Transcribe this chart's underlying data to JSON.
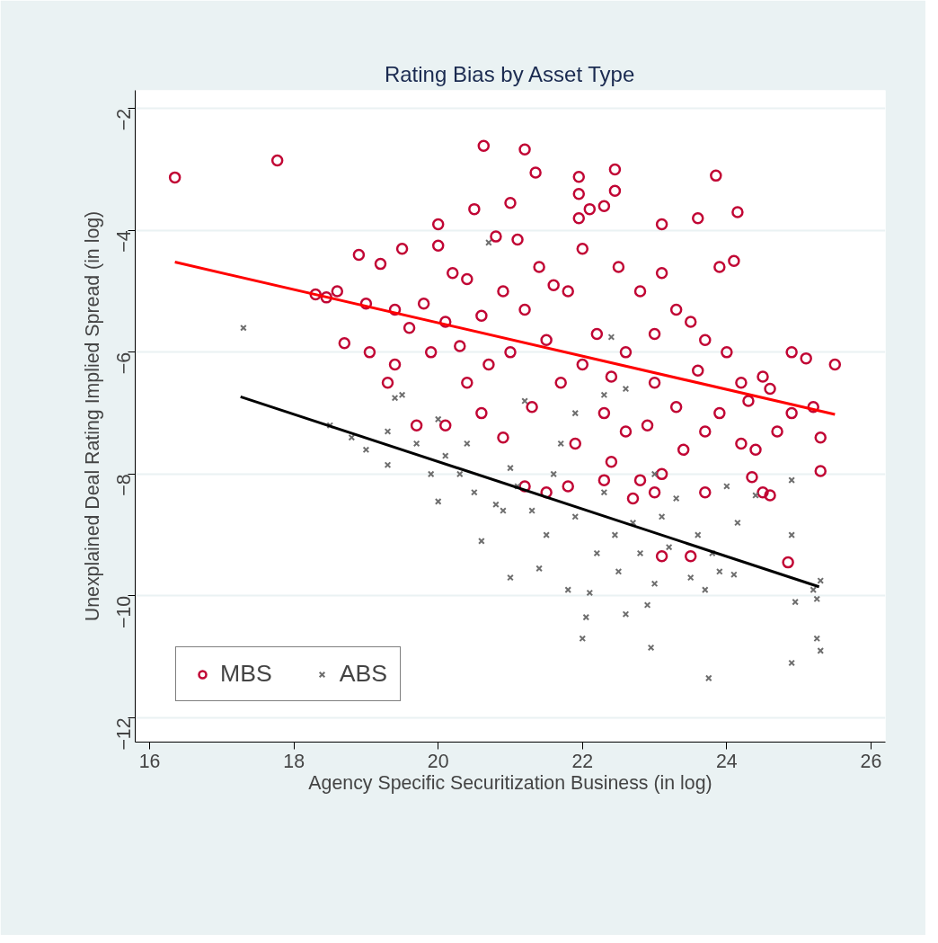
{
  "chart_data": {
    "type": "scatter",
    "title": "Rating Bias by Asset Type",
    "xlabel": "Agency Specific Securitization Business (in log)",
    "ylabel": "Unexplained Deal Rating Implied Spread (in log)",
    "xlim": [
      15.8,
      26.2
    ],
    "ylim": [
      -12.4,
      -1.7
    ],
    "xticks": [
      16,
      18,
      20,
      22,
      24,
      26
    ],
    "yticks": [
      -2,
      -4,
      -6,
      -8,
      -10,
      -12
    ],
    "grid": "y",
    "legend": "bottom left",
    "series": [
      {
        "name": "MBS",
        "color": "#c10534",
        "marker": "circle",
        "x": [
          16.35,
          17.77,
          20.63,
          21.2,
          21.35,
          21.95,
          21.95,
          21.95,
          22.1,
          22.3,
          22.45,
          22.45,
          21.0,
          20.5,
          20.0,
          23.1,
          23.6,
          23.85,
          24.15,
          23.9,
          24.1,
          20.0,
          20.8,
          21.1,
          19.5,
          18.9,
          19.2,
          18.3,
          18.45,
          18.6,
          18.7,
          19.05,
          19.3,
          19.4,
          19.7,
          20.1,
          20.4,
          20.6,
          20.9,
          21.2,
          21.5,
          21.8,
          22.3,
          22.4,
          22.8,
          22.7,
          23.1,
          23.0,
          23.1,
          23.5,
          23.7,
          23.7,
          24.2,
          24.4,
          24.35,
          24.5,
          24.6,
          24.85,
          25.3,
          25.3,
          25.5,
          25.2,
          24.9,
          25.1,
          24.9,
          24.7,
          24.6,
          24.3,
          24.5,
          24.0,
          24.2,
          23.9,
          23.6,
          23.5,
          23.7,
          23.3,
          23.0,
          23.0,
          23.1,
          22.8,
          22.6,
          22.4,
          22.2,
          22.0,
          22.0,
          21.8,
          21.7,
          21.5,
          21.4,
          21.3,
          21.2,
          21.0,
          20.9,
          20.7,
          20.6,
          20.4,
          20.3,
          20.1,
          19.9,
          19.8,
          19.6,
          19.4,
          19.0,
          22.6,
          22.3,
          21.9,
          22.9,
          23.4,
          20.2,
          21.6,
          22.5,
          23.3
        ],
        "values": [
          -3.13,
          -2.85,
          -2.61,
          -2.67,
          -3.05,
          -3.12,
          -3.4,
          -3.8,
          -3.65,
          -3.6,
          -3.0,
          -3.35,
          -3.55,
          -3.65,
          -3.9,
          -3.9,
          -3.8,
          -3.1,
          -3.7,
          -4.6,
          -4.5,
          -4.25,
          -4.1,
          -4.15,
          -4.3,
          -4.4,
          -4.55,
          -5.05,
          -5.1,
          -5.0,
          -5.85,
          -6.0,
          -6.5,
          -6.2,
          -7.2,
          -7.2,
          -6.5,
          -7.0,
          -7.4,
          -8.2,
          -8.3,
          -8.2,
          -8.1,
          -7.8,
          -8.1,
          -8.4,
          -8.0,
          -8.3,
          -9.35,
          -9.35,
          -8.3,
          -7.3,
          -7.5,
          -7.6,
          -8.05,
          -8.3,
          -8.35,
          -9.45,
          -7.95,
          -7.4,
          -6.2,
          -6.9,
          -6.0,
          -6.1,
          -7.0,
          -7.3,
          -6.6,
          -6.8,
          -6.4,
          -6.0,
          -6.5,
          -7.0,
          -6.3,
          -5.5,
          -5.8,
          -6.9,
          -6.5,
          -5.7,
          -4.7,
          -5.0,
          -6.0,
          -6.4,
          -5.7,
          -6.2,
          -4.3,
          -5.0,
          -6.5,
          -5.8,
          -4.6,
          -6.9,
          -5.3,
          -6.0,
          -5.0,
          -6.2,
          -5.4,
          -4.8,
          -5.9,
          -5.5,
          -6.0,
          -5.2,
          -5.6,
          -5.3,
          -5.2,
          -7.3,
          -7.0,
          -7.5,
          -7.2,
          -7.6,
          -4.7,
          -4.9,
          -4.6,
          -5.3
        ]
      },
      {
        "name": "ABS",
        "color": "#6e6e6e",
        "marker": "cross",
        "x": [
          17.3,
          18.5,
          18.8,
          19.0,
          19.3,
          19.4,
          19.5,
          19.3,
          19.7,
          20.0,
          20.1,
          20.0,
          20.3,
          20.5,
          20.6,
          20.8,
          20.9,
          21.0,
          20.7,
          21.1,
          21.2,
          21.3,
          21.4,
          21.5,
          21.6,
          21.7,
          21.8,
          21.9,
          22.0,
          22.05,
          22.1,
          22.2,
          22.3,
          22.4,
          22.45,
          22.5,
          22.6,
          22.7,
          22.8,
          22.9,
          22.95,
          23.0,
          23.1,
          23.2,
          23.3,
          23.5,
          23.6,
          23.7,
          23.75,
          23.8,
          23.9,
          24.0,
          24.1,
          24.15,
          24.4,
          24.9,
          24.9,
          24.95,
          24.9,
          25.2,
          25.25,
          25.3,
          25.25,
          25.3,
          21.9,
          22.3,
          23.0,
          21.0,
          20.4,
          19.9,
          22.6
        ],
        "values": [
          -5.6,
          -7.2,
          -7.4,
          -7.6,
          -7.3,
          -6.75,
          -6.7,
          -7.85,
          -7.5,
          -7.1,
          -7.7,
          -8.45,
          -8.0,
          -8.3,
          -9.1,
          -8.5,
          -8.6,
          -9.7,
          -4.2,
          -8.2,
          -6.8,
          -8.6,
          -9.55,
          -9.0,
          -8.0,
          -7.5,
          -9.9,
          -8.7,
          -10.7,
          -10.35,
          -9.95,
          -9.3,
          -8.3,
          -5.75,
          -9.0,
          -9.6,
          -10.3,
          -8.8,
          -9.3,
          -10.15,
          -10.85,
          -9.8,
          -8.7,
          -9.2,
          -8.4,
          -9.7,
          -9.0,
          -9.9,
          -11.35,
          -9.3,
          -9.6,
          -8.2,
          -9.65,
          -8.8,
          -8.35,
          -8.1,
          -9.0,
          -10.1,
          -11.1,
          -9.9,
          -10.05,
          -9.75,
          -10.7,
          -10.9,
          -7.0,
          -6.7,
          -8.0,
          -7.9,
          -7.5,
          -8.0,
          -6.6
        ]
      },
      {
        "type": "line",
        "color": "#ff0000",
        "x": [
          16.35,
          25.5
        ],
        "values": [
          -4.52,
          -7.02
        ]
      },
      {
        "type": "line",
        "color": "#000000",
        "x": [
          17.26,
          25.28
        ],
        "values": [
          -6.73,
          -9.85
        ]
      }
    ]
  }
}
